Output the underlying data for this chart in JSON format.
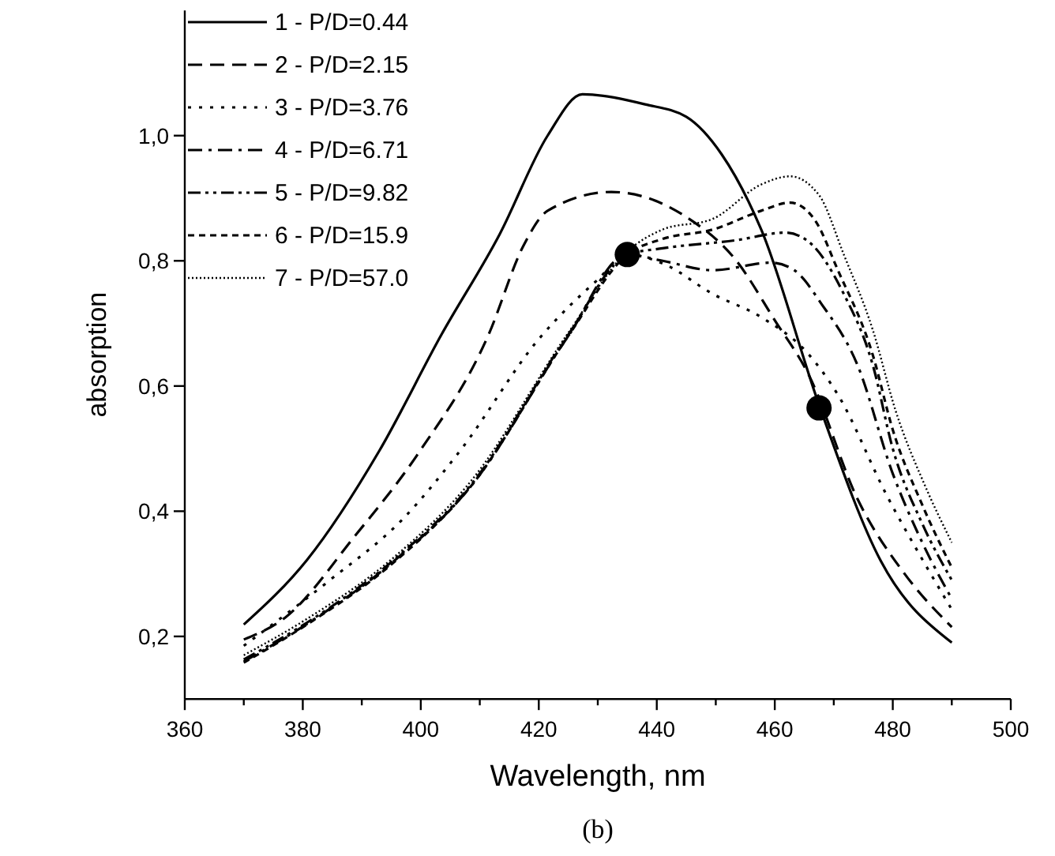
{
  "chart_data": {
    "type": "line",
    "xlabel": "Wavelength, nm",
    "ylabel": "absorption",
    "annotations": [
      "(b)"
    ],
    "xlim": [
      360,
      500
    ],
    "ylim": [
      0.1,
      1.2
    ],
    "xticks": [
      360,
      {
        "value": 370,
        "label": null
      },
      380,
      {
        "value": 390,
        "label": null
      },
      400,
      {
        "value": 410,
        "label": null
      },
      420,
      {
        "value": 430,
        "label": null
      },
      440,
      {
        "value": 450,
        "label": null
      },
      460,
      {
        "value": 470,
        "label": null
      },
      480,
      {
        "value": 490,
        "label": null
      },
      500
    ],
    "yticks": [
      {
        "value": 0.2,
        "label": "0,2"
      },
      {
        "value": 0.4,
        "label": "0,4"
      },
      {
        "value": 0.6,
        "label": "0,6"
      },
      {
        "value": 0.8,
        "label": "0,8"
      },
      {
        "value": 1.0,
        "label": "1,0"
      }
    ],
    "legend": "top left",
    "grid": false,
    "series": [
      {
        "name": "1 - P/D=0.44",
        "color": "#000000",
        "line_style": "solid",
        "x": [
          370,
          380.7,
          393,
          403.5,
          413.4,
          421.5,
          427.4,
          438,
          445,
          451,
          457.7,
          467.5,
          478,
          490
        ],
        "values": [
          0.219,
          0.322,
          0.497,
          0.682,
          0.843,
          1.0,
          1.066,
          1.05,
          1.03,
          0.97,
          0.85,
          0.57,
          0.32,
          0.19
        ]
      },
      {
        "name": "2 - P/D=2.15",
        "color": "#000000",
        "line_style": "dashed",
        "x": [
          370,
          377,
          388.8,
          399.4,
          411.4,
          417.5,
          421.5,
          432.3,
          445,
          453.5,
          460,
          465.8,
          474,
          482,
          490
        ],
        "values": [
          0.195,
          0.23,
          0.36,
          0.49,
          0.68,
          0.826,
          0.88,
          0.91,
          0.87,
          0.8,
          0.705,
          0.617,
          0.42,
          0.3,
          0.215
        ]
      },
      {
        "name": "3 - P/D=3.76",
        "color": "#000000",
        "line_style": "dotted",
        "x": [
          370,
          384.6,
          396.9,
          406.7,
          420,
          430,
          435,
          441.2,
          449.5,
          457.7,
          465.8,
          470.7,
          479,
          485.5,
          490
        ],
        "values": [
          0.185,
          0.29,
          0.387,
          0.497,
          0.675,
          0.77,
          0.81,
          0.795,
          0.747,
          0.71,
          0.65,
          0.586,
          0.425,
          0.315,
          0.243
        ]
      },
      {
        "name": "4 - P/D=6.71",
        "color": "#000000",
        "line_style": "dashdot",
        "x": [
          370,
          380.7,
          395.4,
          408.5,
          425,
          435,
          441,
          449.5,
          459.4,
          463.3,
          468,
          474,
          480,
          485,
          490
        ],
        "values": [
          0.16,
          0.22,
          0.32,
          0.44,
          0.68,
          0.81,
          0.8,
          0.785,
          0.797,
          0.785,
          0.73,
          0.634,
          0.46,
          0.35,
          0.26
        ]
      },
      {
        "name": "5 - P/D=9.82",
        "color": "#000000",
        "line_style": "dashdotdot",
        "x": [
          370,
          380.7,
          395.4,
          408.5,
          425,
          435,
          441,
          453.5,
          461.8,
          465.8,
          471.7,
          476.6,
          480,
          485,
          490
        ],
        "values": [
          0.163,
          0.222,
          0.322,
          0.442,
          0.682,
          0.81,
          0.82,
          0.833,
          0.845,
          0.83,
          0.747,
          0.634,
          0.5,
          0.38,
          0.29
        ]
      },
      {
        "name": "6 - P/D=15.9",
        "color": "#000000",
        "line_style": "shortdash",
        "x": [
          370,
          380.7,
          395.4,
          408.5,
          425,
          435,
          441,
          449.5,
          457.7,
          462.6,
          466.8,
          470.7,
          476.6,
          480,
          485,
          490
        ],
        "values": [
          0.158,
          0.219,
          0.318,
          0.44,
          0.68,
          0.81,
          0.835,
          0.85,
          0.88,
          0.893,
          0.865,
          0.785,
          0.65,
          0.53,
          0.41,
          0.31
        ]
      },
      {
        "name": "7 - P/D=57.0",
        "color": "#000000",
        "line_style": "finedot",
        "x": [
          370,
          380.7,
          395.4,
          408.5,
          425,
          435,
          441,
          449.5,
          457.7,
          462.6,
          467.5,
          471.7,
          476.6,
          480.5,
          485.5,
          490
        ],
        "values": [
          0.17,
          0.228,
          0.326,
          0.448,
          0.685,
          0.815,
          0.85,
          0.867,
          0.922,
          0.935,
          0.905,
          0.81,
          0.69,
          0.56,
          0.44,
          0.35
        ]
      },
      {
        "type": "scatter",
        "marker": "circle",
        "color": "#000000",
        "x": [
          435,
          467.5
        ],
        "values": [
          0.81,
          0.565
        ]
      }
    ]
  }
}
